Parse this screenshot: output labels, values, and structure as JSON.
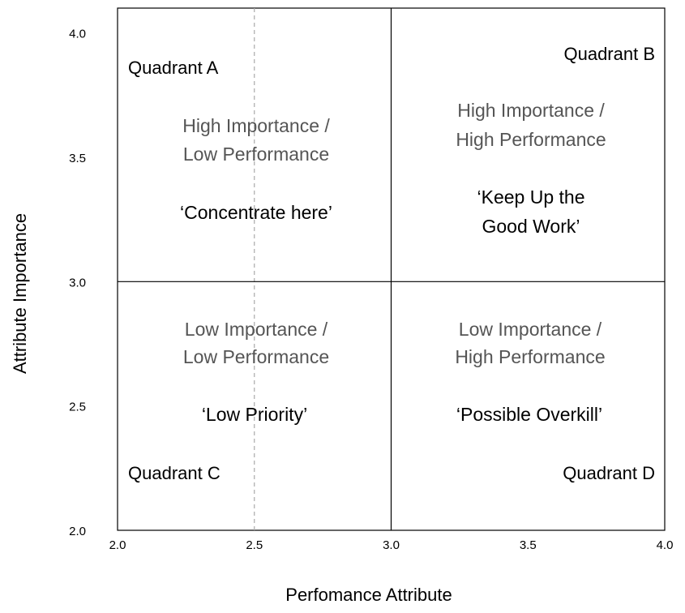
{
  "chart_data": {
    "type": "scatter",
    "title": "",
    "xlabel": "Perfomance Attribute",
    "ylabel": "Attribute Importance",
    "xlim": [
      2.0,
      4.0
    ],
    "ylim": [
      2.0,
      4.1
    ],
    "x_ticks": [
      "2.0",
      "2.5",
      "3.0",
      "3.5",
      "4.0"
    ],
    "y_ticks": [
      "2.0",
      "2.5",
      "3.0",
      "3.5",
      "4.0"
    ],
    "x_divider": 3.0,
    "y_divider": 3.0,
    "reference_line_x": 2.5,
    "grid": false,
    "quadrants": [
      {
        "name": "Quadrant A",
        "description": [
          "High Importance /",
          "Low Performance"
        ],
        "motto": [
          "‘Concentrate here’"
        ]
      },
      {
        "name": "Quadrant B",
        "description": [
          "High Importance /",
          "High Performance"
        ],
        "motto": [
          "‘Keep Up the",
          "Good Work’"
        ]
      },
      {
        "name": "Quadrant C",
        "description": [
          "Low Importance /",
          "Low Performance"
        ],
        "motto": [
          "‘Low Priority’"
        ]
      },
      {
        "name": "Quadrant D",
        "description": [
          "Low Importance /",
          "High Performance"
        ],
        "motto": [
          "‘Possible Overkill’"
        ]
      }
    ]
  }
}
